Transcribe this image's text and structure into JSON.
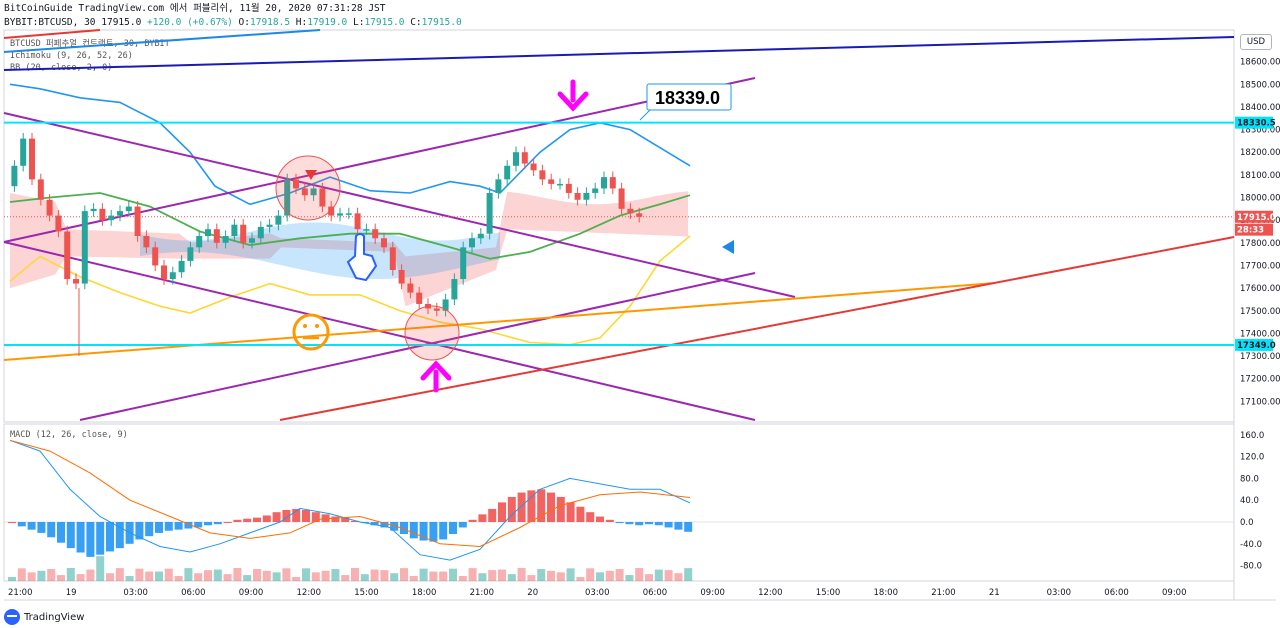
{
  "header": {
    "line1": "BitCoinGuide TradingView.com 에서 퍼블리쉬, 11월 20, 2020 07:31:28 JST",
    "symbol": "BYBIT:BTCUSD, 30",
    "price": "17915.0",
    "change": "+120.0 (+0.67%)",
    "o": "17918.5",
    "h": "17919.0",
    "l": "17915.0",
    "c": "17915.0"
  },
  "legend": {
    "line1": "BTCUSD 퍼페추얼 컨트랙트, 30, BYBIT",
    "line2": "Ichimoku (9, 26, 52, 26)",
    "line3": "BB (20, close, 2, 0)"
  },
  "currency": "USD",
  "annotation": {
    "price_callout": "18339.0"
  },
  "footer": {
    "brand": "TradingView"
  },
  "colors": {
    "up": "#26a69a",
    "down": "#ef5350",
    "bb_band": "#2196f3",
    "bb_basis": "#4caf50",
    "ichimoku_lead": "#fdd835",
    "purple_channel": "#9c27b0",
    "cyan_level": "#00e5ff",
    "red_trend": "#e53935",
    "orange_trend": "#ff9800",
    "blue_trend": "#1a1ab8",
    "magenta_arrow": "#ff00ff",
    "macd_line": "#2196f3",
    "signal_line": "#ff6d00"
  },
  "chart_data": [
    {
      "type": "line",
      "title": "BTCUSD 30m",
      "y_ticks": [
        17100,
        17200,
        17300,
        17400,
        17500,
        17600,
        17700,
        17800,
        17900,
        18000,
        18100,
        18200,
        18300,
        18400,
        18500,
        18600
      ],
      "y_unit_label": "USD",
      "ylim": [
        17000,
        18700
      ],
      "x_ticks": [
        "21:00",
        "19",
        "03:00",
        "06:00",
        "09:00",
        "12:00",
        "15:00",
        "18:00",
        "21:00",
        "20",
        "03:00",
        "06:00",
        "09:00",
        "12:00",
        "15:00",
        "18:00",
        "21:00",
        "21",
        "03:00",
        "06:00",
        "09:00"
      ],
      "price_labels": [
        {
          "label": "18330.5",
          "value": 18330.5,
          "color": "#00e5ff"
        },
        {
          "label": "17915.0",
          "value": 17915,
          "color": "#ef5350"
        },
        {
          "label": "28:33",
          "value": 17858,
          "color": "#ef5350"
        },
        {
          "label": "17349.0",
          "value": 17349,
          "color": "#00e5ff"
        }
      ],
      "horizontal_levels": [
        18330.5,
        17349.0
      ],
      "candles_close_approx": [
        18140,
        18260,
        18080,
        17990,
        17920,
        17850,
        17640,
        17620,
        17940,
        17950,
        17900,
        17920,
        17940,
        17960,
        17830,
        17780,
        17700,
        17640,
        17670,
        17720,
        17780,
        17830,
        17860,
        17800,
        17830,
        17880,
        17800,
        17820,
        17870,
        17880,
        17920,
        18080,
        18040,
        18010,
        18040,
        17960,
        17920,
        17930,
        17930,
        17860,
        17860,
        17820,
        17780,
        17680,
        17620,
        17580,
        17530,
        17510,
        17500,
        17550,
        17640,
        17780,
        17820,
        17840,
        18020,
        18080,
        18140,
        18200,
        18150,
        18120,
        18080,
        18060,
        18060,
        18020,
        17990,
        18020,
        18040,
        18090,
        18040,
        17950,
        17930,
        17915
      ]
    },
    {
      "type": "bar",
      "title": "MACD (12, 26, close, 9)",
      "series_names": [
        "MACD",
        "Signal",
        "Histogram"
      ],
      "y_ticks": [
        -80,
        -40,
        0,
        40,
        80,
        120,
        160
      ],
      "ylim": [
        -100,
        175
      ],
      "histogram_approx": [
        0,
        -8,
        -14,
        -20,
        -28,
        -38,
        -48,
        -56,
        -64,
        -60,
        -54,
        -48,
        -40,
        -32,
        -26,
        -20,
        -16,
        -14,
        -12,
        -10,
        -6,
        -4,
        0,
        4,
        6,
        8,
        12,
        18,
        22,
        24,
        22,
        18,
        14,
        10,
        8,
        2,
        -2,
        -6,
        -10,
        -16,
        -22,
        -30,
        -34,
        -36,
        -32,
        -22,
        -10,
        4,
        14,
        24,
        36,
        46,
        54,
        58,
        60,
        54,
        46,
        36,
        28,
        18,
        10,
        4,
        -2,
        -4,
        -6,
        -4,
        -6,
        -10,
        -14,
        -18
      ]
    }
  ]
}
